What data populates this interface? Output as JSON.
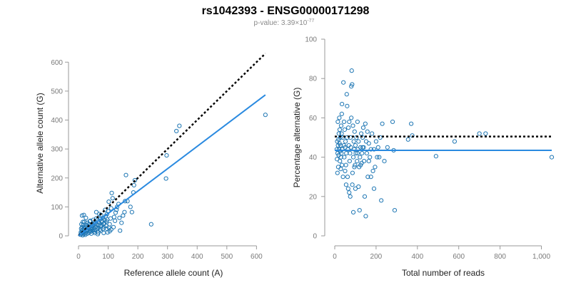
{
  "figure": {
    "title": "rs1042393 - ENSG00000171298",
    "subtitle_prefix": "p-value: 3.39×10",
    "subtitle_exponent": "-77"
  },
  "chart_data": [
    {
      "type": "scatter",
      "xlabel": "Reference allele count (A)",
      "ylabel": "Alternative allele count (G)",
      "xlim": [
        0,
        640
      ],
      "ylim": [
        0,
        640
      ],
      "xticks": [
        0,
        100,
        200,
        300,
        400,
        500,
        600
      ],
      "yticks": [
        0,
        100,
        200,
        300,
        400,
        500,
        600
      ],
      "point_color": "#1f77b4",
      "fit_color": "#2a8ae0",
      "reference_line_color": "#000000",
      "reference_line": {
        "style": "dotted",
        "x": [
          0,
          630
        ],
        "y": [
          0,
          630
        ]
      },
      "fit_line": {
        "style": "solid",
        "x": [
          0,
          630
        ],
        "y": [
          0,
          487
        ]
      },
      "points": [
        [
          630,
          418
        ],
        [
          340,
          380
        ],
        [
          330,
          362
        ],
        [
          297,
          278
        ],
        [
          295,
          198
        ],
        [
          245,
          40
        ],
        [
          190,
          192
        ],
        [
          187,
          175
        ],
        [
          185,
          150
        ],
        [
          160,
          210
        ],
        [
          157,
          120
        ],
        [
          150,
          70
        ],
        [
          145,
          45
        ],
        [
          140,
          18
        ],
        [
          135,
          110
        ],
        [
          130,
          100
        ],
        [
          128,
          90
        ],
        [
          125,
          80
        ],
        [
          120,
          65
        ],
        [
          115,
          130
        ],
        [
          112,
          148
        ],
        [
          110,
          95
        ],
        [
          108,
          60
        ],
        [
          105,
          40
        ],
        [
          102,
          118
        ],
        [
          100,
          85
        ],
        [
          98,
          12
        ],
        [
          96,
          75
        ],
        [
          94,
          50
        ],
        [
          92,
          68
        ],
        [
          90,
          90
        ],
        [
          88,
          55
        ],
        [
          86,
          30
        ],
        [
          84,
          42
        ],
        [
          82,
          62
        ],
        [
          80,
          48
        ],
        [
          78,
          35
        ],
        [
          76,
          72
        ],
        [
          74,
          58
        ],
        [
          72,
          22
        ],
        [
          70,
          45
        ],
        [
          68,
          38
        ],
        [
          66,
          28
        ],
        [
          64,
          55
        ],
        [
          62,
          40
        ],
        [
          60,
          82
        ],
        [
          58,
          30
        ],
        [
          56,
          20
        ],
        [
          54,
          44
        ],
        [
          52,
          26
        ],
        [
          50,
          35
        ],
        [
          48,
          18
        ],
        [
          46,
          40
        ],
        [
          44,
          30
        ],
        [
          42,
          15
        ],
        [
          40,
          24
        ],
        [
          38,
          50
        ],
        [
          36,
          12
        ],
        [
          34,
          28
        ],
        [
          32,
          20
        ],
        [
          30,
          8
        ],
        [
          28,
          36
        ],
        [
          26,
          16
        ],
        [
          24,
          10
        ],
        [
          22,
          30
        ],
        [
          20,
          20
        ],
        [
          18,
          6
        ],
        [
          16,
          38
        ],
        [
          15,
          22
        ],
        [
          14,
          10
        ],
        [
          13,
          14
        ],
        [
          12,
          30
        ],
        [
          11,
          18
        ],
        [
          10,
          8
        ],
        [
          9,
          25
        ],
        [
          8,
          12
        ],
        [
          7,
          4
        ],
        [
          12,
          70
        ],
        [
          18,
          72
        ],
        [
          20,
          48
        ],
        [
          25,
          62
        ],
        [
          15,
          48
        ],
        [
          10,
          40
        ],
        [
          35,
          40
        ],
        [
          45,
          22
        ],
        [
          55,
          10
        ],
        [
          65,
          6
        ],
        [
          75,
          18
        ],
        [
          85,
          10
        ],
        [
          95,
          25
        ],
        [
          105,
          16
        ],
        [
          118,
          30
        ],
        [
          123,
          52
        ],
        [
          138,
          62
        ],
        [
          155,
          82
        ],
        [
          165,
          120
        ],
        [
          175,
          100
        ],
        [
          180,
          82
        ],
        [
          60,
          60
        ],
        [
          70,
          75
        ],
        [
          50,
          55
        ],
        [
          40,
          52
        ],
        [
          30,
          45
        ],
        [
          25,
          35
        ],
        [
          19,
          27
        ],
        [
          21,
          14
        ],
        [
          27,
          22
        ],
        [
          33,
          33
        ],
        [
          39,
          18
        ],
        [
          43,
          8
        ],
        [
          47,
          28
        ],
        [
          53,
          15
        ],
        [
          57,
          42
        ],
        [
          63,
          24
        ],
        [
          67,
          12
        ],
        [
          73,
          34
        ],
        [
          77,
          50
        ],
        [
          83,
          24
        ],
        [
          87,
          44
        ],
        [
          93,
          34
        ],
        [
          97,
          56
        ],
        [
          103,
          28
        ],
        [
          110,
          22
        ],
        [
          14,
          2
        ],
        [
          17,
          12
        ],
        [
          23,
          4
        ],
        [
          29,
          16
        ]
      ]
    },
    {
      "type": "scatter",
      "xlabel": "Total number of reads",
      "ylabel": "Percentage alternative (G)",
      "xlim": [
        0,
        1050
      ],
      "ylim": [
        0,
        100
      ],
      "xticks": [
        0,
        200,
        400,
        600,
        800,
        1000
      ],
      "xticklabels": [
        "0",
        "200",
        "400",
        "600",
        "800",
        "1,000"
      ],
      "yticks": [
        0,
        20,
        40,
        60,
        80,
        100
      ],
      "point_color": "#1f77b4",
      "fit_color": "#2a8ae0",
      "reference_line_color": "#000000",
      "reference_line": {
        "style": "dotted",
        "y": 50.5
      },
      "fit_line": {
        "style": "solid",
        "y": 43.5
      },
      "points": [
        [
          1050,
          40
        ],
        [
          730,
          52
        ],
        [
          700,
          52
        ],
        [
          580,
          48
        ],
        [
          490,
          40.5
        ],
        [
          375,
          51
        ],
        [
          370,
          57
        ],
        [
          355,
          49
        ],
        [
          290,
          13
        ],
        [
          285,
          43.5
        ],
        [
          280,
          58
        ],
        [
          255,
          45
        ],
        [
          240,
          38
        ],
        [
          230,
          57
        ],
        [
          225,
          18
        ],
        [
          220,
          50
        ],
        [
          215,
          40
        ],
        [
          210,
          45
        ],
        [
          200,
          48
        ],
        [
          195,
          35
        ],
        [
          190,
          44
        ],
        [
          185,
          33
        ],
        [
          180,
          52
        ],
        [
          175,
          44
        ],
        [
          170,
          40
        ],
        [
          165,
          47
        ],
        [
          160,
          30
        ],
        [
          158,
          53
        ],
        [
          155,
          42
        ],
        [
          152,
          48
        ],
        [
          148,
          57
        ],
        [
          145,
          20
        ],
        [
          142,
          38
        ],
        [
          140,
          45
        ],
        [
          138,
          55
        ],
        [
          135,
          50
        ],
        [
          132,
          42
        ],
        [
          130,
          37
        ],
        [
          128,
          52
        ],
        [
          125,
          45
        ],
        [
          122,
          40
        ],
        [
          120,
          13
        ],
        [
          118,
          35
        ],
        [
          115,
          48
        ],
        [
          112,
          44
        ],
        [
          110,
          58
        ],
        [
          108,
          38
        ],
        [
          105,
          50
        ],
        [
          102,
          42
        ],
        [
          100,
          24
        ],
        [
          98,
          36
        ],
        [
          96,
          53
        ],
        [
          94,
          44
        ],
        [
          92,
          48
        ],
        [
          90,
          40
        ],
        [
          88,
          56
        ],
        [
          86,
          32
        ],
        [
          84,
          77
        ],
        [
          82,
          84
        ],
        [
          80,
          76
        ],
        [
          78,
          45
        ],
        [
          76,
          50
        ],
        [
          74,
          42
        ],
        [
          72,
          38
        ],
        [
          70,
          22
        ],
        [
          68,
          46
        ],
        [
          66,
          55
        ],
        [
          64,
          44
        ],
        [
          62,
          30
        ],
        [
          60,
          50
        ],
        [
          58,
          72
        ],
        [
          56,
          42
        ],
        [
          54,
          36
        ],
        [
          52,
          48
        ],
        [
          50,
          33
        ],
        [
          48,
          54
        ],
        [
          46,
          40
        ],
        [
          44,
          46
        ],
        [
          42,
          78
        ],
        [
          40,
          30
        ],
        [
          38,
          50
        ],
        [
          36,
          44
        ],
        [
          35,
          36
        ],
        [
          34,
          62
        ],
        [
          33,
          52
        ],
        [
          32,
          42
        ],
        [
          31,
          56
        ],
        [
          30,
          40
        ],
        [
          29,
          34
        ],
        [
          28,
          46
        ],
        [
          27,
          50
        ],
        [
          26,
          43
        ],
        [
          25,
          38
        ],
        [
          24,
          54
        ],
        [
          23,
          47
        ],
        [
          22,
          60
        ],
        [
          21,
          44
        ],
        [
          20,
          52
        ],
        [
          19,
          41
        ],
        [
          18,
          49
        ],
        [
          17,
          35
        ],
        [
          16,
          46
        ],
        [
          15,
          58
        ],
        [
          14,
          42
        ],
        [
          13,
          32
        ],
        [
          12,
          48
        ],
        [
          11,
          39
        ],
        [
          10,
          44
        ],
        [
          55,
          26
        ],
        [
          65,
          24
        ],
        [
          75,
          20
        ],
        [
          85,
          26
        ],
        [
          95,
          35
        ],
        [
          115,
          25
        ],
        [
          125,
          36
        ],
        [
          135,
          45
        ],
        [
          150,
          10
        ],
        [
          165,
          38
        ],
        [
          175,
          30
        ],
        [
          190,
          24
        ],
        [
          205,
          40
        ],
        [
          60,
          66
        ],
        [
          70,
          58
        ],
        [
          80,
          60
        ],
        [
          90,
          12
        ],
        [
          100,
          46
        ],
        [
          110,
          42
        ],
        [
          45,
          58
        ],
        [
          35,
          67
        ],
        [
          50,
          45
        ]
      ]
    }
  ]
}
